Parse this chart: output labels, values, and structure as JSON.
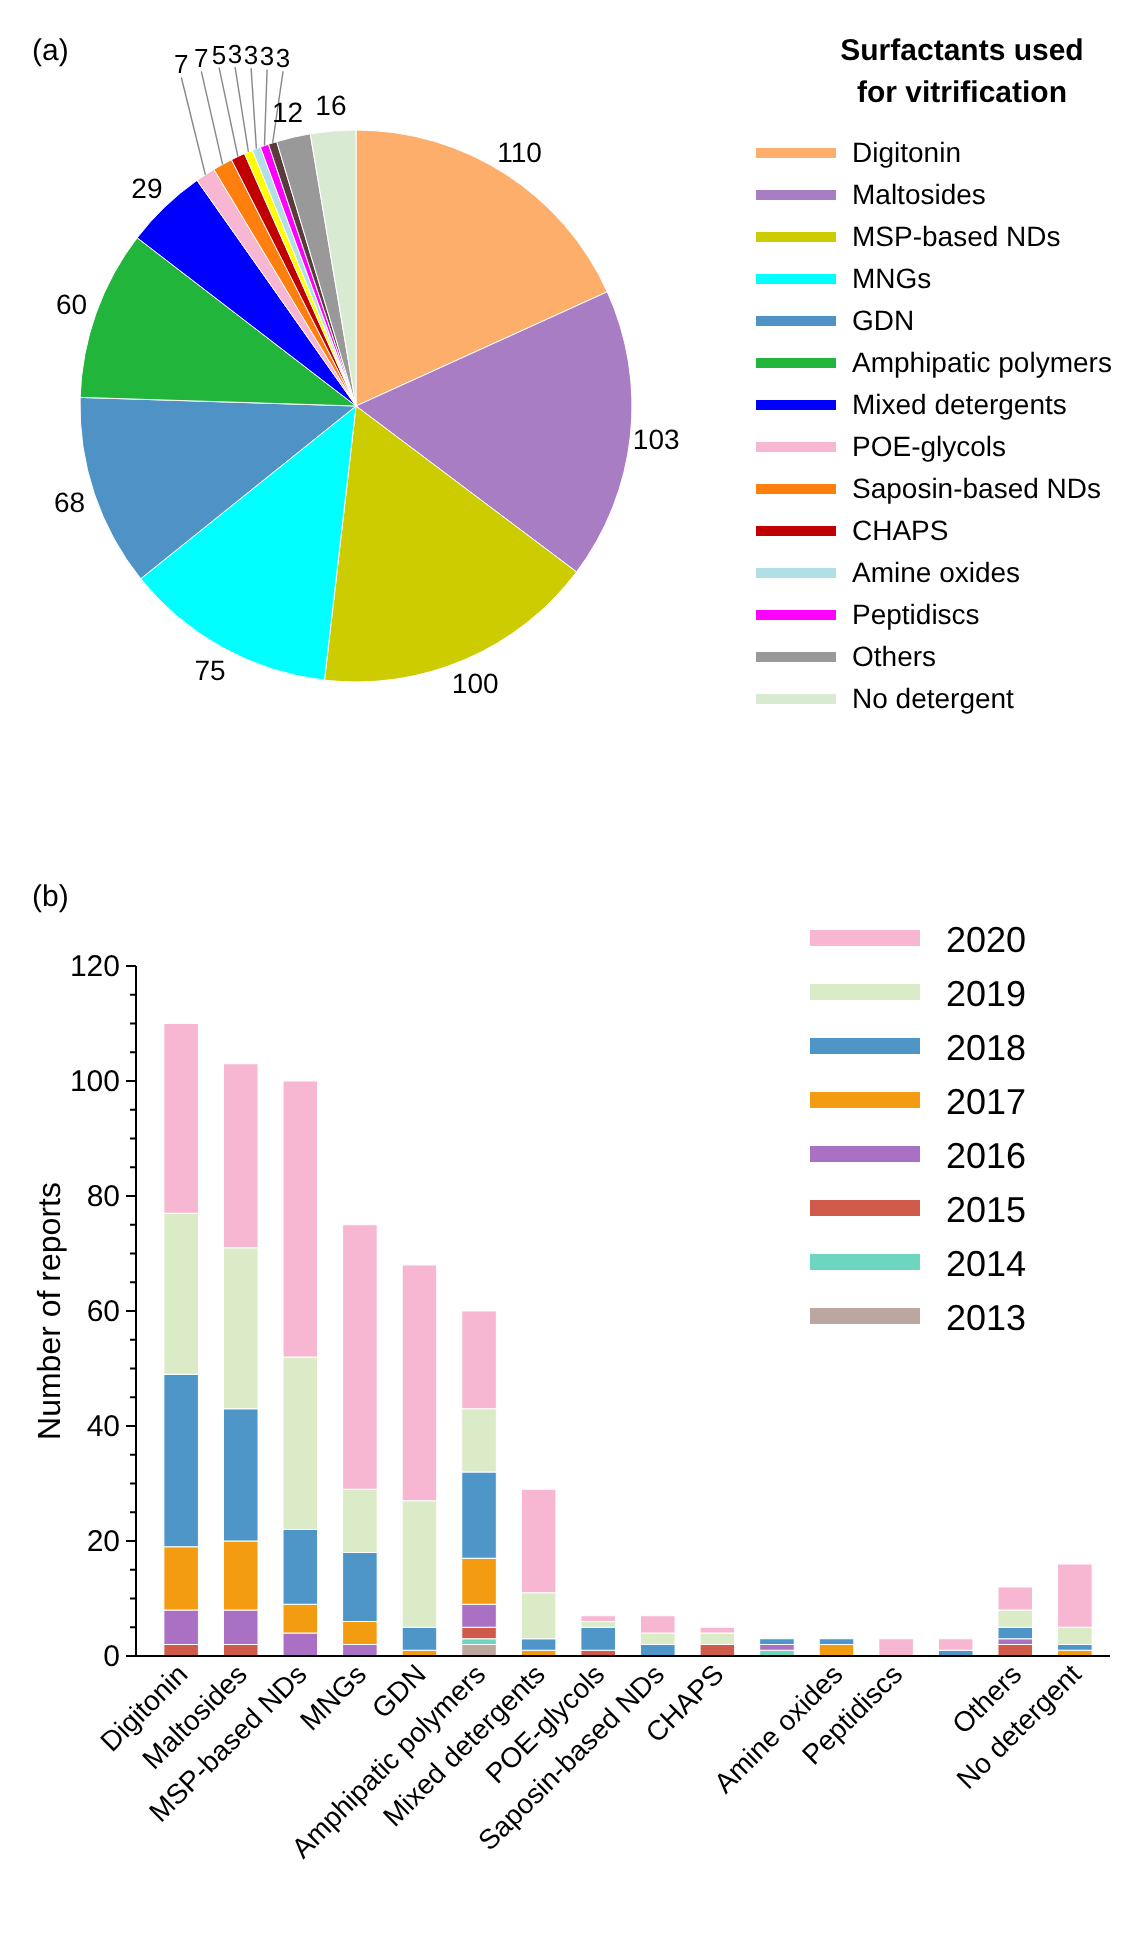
{
  "chart_data": [
    {
      "type": "pie",
      "legend_title": "Surfactants used for vitrification",
      "annotations": [
        "(a)"
      ],
      "data_labels": true,
      "legend": "right",
      "categories": [
        "Digitonin",
        "Maltosides",
        "MSP-based NDs",
        "MNGs",
        "GDN",
        "Amphipatic polymers",
        "Mixed detergents",
        "POE-glycols",
        "Saposin-based NDs",
        "CHAPS",
        null,
        "Amine oxides",
        "Peptidiscs",
        null,
        "Others",
        "No detergent"
      ],
      "values": [
        110,
        103,
        100,
        75,
        68,
        60,
        29,
        7,
        7,
        5,
        3,
        3,
        3,
        3,
        12,
        16
      ],
      "colors": [
        "#fdae6b",
        "#a97dc4",
        "#cccc00",
        "#00ffff",
        "#4f93c6",
        "#22b53b",
        "#0000ff",
        "#f7b6d2",
        "#ff7f0e",
        "#c00000",
        "#ffff00",
        "#b0e0e6",
        "#ff00ff",
        "#5a3a3a",
        "#999999",
        "#d9ead3"
      ]
    },
    {
      "type": "bar",
      "stacked": true,
      "annotations": [
        "(b)"
      ],
      "ylabel": "Number of reports",
      "legend": "top right",
      "grid": false,
      "categories": [
        "Digitonin",
        "Maltosides",
        "MSP-based NDs",
        "MNGs",
        "GDN",
        "Amphipatic polymers",
        "Mixed detergents",
        "POE-glycols",
        "Saposin-based NDs",
        "CHAPS",
        null,
        "Amine oxides",
        "Peptidiscs",
        null,
        "Others",
        "No detergent"
      ],
      "ylim": [
        0,
        120
      ],
      "yticks": [
        0,
        {
          "value": 5,
          "label": null
        },
        {
          "value": 10,
          "label": null
        },
        {
          "value": 15,
          "label": null
        },
        20,
        {
          "value": 25,
          "label": null
        },
        {
          "value": 30,
          "label": null
        },
        {
          "value": 35,
          "label": null
        },
        40,
        {
          "value": 45,
          "label": null
        },
        {
          "value": 50,
          "label": null
        },
        {
          "value": 55,
          "label": null
        },
        60,
        {
          "value": 65,
          "label": null
        },
        {
          "value": 70,
          "label": null
        },
        {
          "value": 75,
          "label": null
        },
        80,
        {
          "value": 85,
          "label": null
        },
        {
          "value": 90,
          "label": null
        },
        {
          "value": 95,
          "label": null
        },
        100,
        {
          "value": 105,
          "label": null
        },
        {
          "value": 110,
          "label": null
        },
        {
          "value": 115,
          "label": null
        },
        120
      ],
      "series": [
        {
          "name": "2013",
          "color": "#bba6a0",
          "values": [
            0,
            0,
            0,
            0,
            0,
            2,
            0,
            0,
            0,
            0,
            0,
            0,
            0,
            0,
            0,
            0
          ]
        },
        {
          "name": "2014",
          "color": "#6dd5c0",
          "values": [
            0,
            0,
            0,
            0,
            0,
            1,
            0,
            0,
            0,
            0,
            1,
            0,
            0,
            0,
            0,
            0
          ]
        },
        {
          "name": "2015",
          "color": "#d05a4a",
          "values": [
            2,
            2,
            0,
            0,
            0,
            2,
            0,
            1,
            0,
            2,
            0,
            0,
            0,
            0,
            2,
            0
          ]
        },
        {
          "name": "2016",
          "color": "#a970c4",
          "values": [
            6,
            6,
            4,
            2,
            0,
            4,
            0,
            0,
            0,
            0,
            1,
            0,
            0,
            0,
            1,
            0
          ]
        },
        {
          "name": "2017",
          "color": "#f39c12",
          "values": [
            11,
            12,
            5,
            4,
            1,
            8,
            1,
            0,
            0,
            0,
            0,
            2,
            0,
            0,
            0,
            1
          ]
        },
        {
          "name": "2018",
          "color": "#4e96c8",
          "values": [
            30,
            23,
            13,
            12,
            4,
            15,
            2,
            4,
            2,
            0,
            1,
            1,
            0,
            1,
            2,
            1
          ]
        },
        {
          "name": "2019",
          "color": "#dbeac7",
          "values": [
            28,
            28,
            30,
            11,
            22,
            11,
            8,
            1,
            2,
            2,
            0,
            0,
            0,
            0,
            3,
            3
          ]
        },
        {
          "name": "2020",
          "color": "#f7b6d2",
          "values": [
            33,
            32,
            48,
            46,
            41,
            17,
            18,
            1,
            3,
            1,
            0,
            0,
            3,
            2,
            4,
            11
          ]
        }
      ]
    }
  ]
}
